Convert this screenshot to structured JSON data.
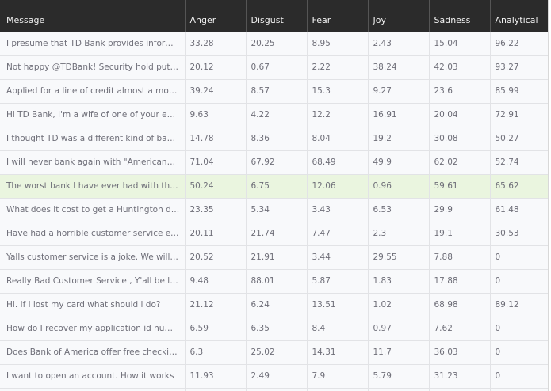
{
  "table": {
    "columns": [
      "Message",
      "Anger",
      "Disgust",
      "Fear",
      "Joy",
      "Sadness",
      "Analytical"
    ],
    "selected_row_index": 6,
    "highlight_color": "#eaf5df",
    "header_bg": "#2b2b2b",
    "rows": [
      {
        "message": "I presume that TD Bank provides information ...",
        "anger": "33.28",
        "disgust": "20.25",
        "fear": "8.95",
        "joy": "2.43",
        "sadness": "15.04",
        "analytical": "96.22"
      },
      {
        "message": "Not happy @TDBank! Security hold put on car...",
        "anger": "20.12",
        "disgust": "0.67",
        "fear": "2.22",
        "joy": "38.24",
        "sadness": "42.03",
        "analytical": "93.27"
      },
      {
        "message": "Applied for a line of credit almost a month ag...",
        "anger": "39.24",
        "disgust": "8.57",
        "fear": "15.3",
        "joy": "9.27",
        "sadness": "23.6",
        "analytical": "85.99"
      },
      {
        "message": "Hi TD Bank, I'm a wife of one of your employee...",
        "anger": "9.63",
        "disgust": "4.22",
        "fear": "12.2",
        "joy": "16.91",
        "sadness": "20.04",
        "analytical": "72.91"
      },
      {
        "message": "I thought TD was a different kind of bank. I gu...",
        "anger": "14.78",
        "disgust": "8.36",
        "fear": "8.04",
        "joy": "19.2",
        "sadness": "30.08",
        "analytical": "50.27"
      },
      {
        "message": "I will never bank again with \"Americans most ...",
        "anger": "71.04",
        "disgust": "67.92",
        "fear": "68.49",
        "joy": "49.9",
        "sadness": "62.02",
        "analytical": "52.74"
      },
      {
        "message": "The worst bank I have ever had with the most ...",
        "anger": "50.24",
        "disgust": "6.75",
        "fear": "12.06",
        "joy": "0.96",
        "sadness": "59.61",
        "analytical": "65.62"
      },
      {
        "message": "What does it cost to get a Huntington debit ca...",
        "anger": "23.35",
        "disgust": "5.34",
        "fear": "3.43",
        "joy": "6.53",
        "sadness": "29.9",
        "analytical": "61.48"
      },
      {
        "message": "Have had a horrible customer service experien...",
        "anger": "20.11",
        "disgust": "21.74",
        "fear": "7.47",
        "joy": "2.3",
        "sadness": "19.1",
        "analytical": "30.53"
      },
      {
        "message": "Yalls customer service is a joke. We will definit...",
        "anger": "20.52",
        "disgust": "21.91",
        "fear": "3.44",
        "joy": "29.55",
        "sadness": "7.88",
        "analytical": "0"
      },
      {
        "message": "Really Bad Customer Service , Y'all be lying to...",
        "anger": "9.48",
        "disgust": "88.01",
        "fear": "5.87",
        "joy": "1.83",
        "sadness": "17.88",
        "analytical": "0"
      },
      {
        "message": "Hi. If i lost my card what should i do?",
        "anger": "21.12",
        "disgust": "6.24",
        "fear": "13.51",
        "joy": "1.02",
        "sadness": "68.98",
        "analytical": "89.12"
      },
      {
        "message": "How do I recover my application id number?",
        "anger": "6.59",
        "disgust": "6.35",
        "fear": "8.4",
        "joy": "0.97",
        "sadness": "7.62",
        "analytical": "0"
      },
      {
        "message": "Does Bank of America offer free checking to m...",
        "anger": "6.3",
        "disgust": "25.02",
        "fear": "14.31",
        "joy": "11.7",
        "sadness": "36.03",
        "analytical": "0"
      },
      {
        "message": "I want to open an account. How it works",
        "anger": "11.93",
        "disgust": "2.49",
        "fear": "7.9",
        "joy": "5.79",
        "sadness": "31.23",
        "analytical": "0"
      }
    ]
  }
}
